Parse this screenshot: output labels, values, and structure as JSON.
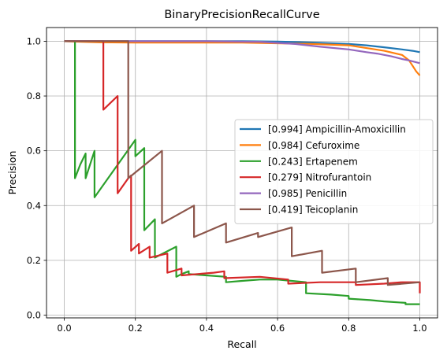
{
  "chart_data": {
    "type": "line",
    "title": "BinaryPrecisionRecallCurve",
    "xlabel": "Recall",
    "ylabel": "Precision",
    "xlim": [
      -0.05,
      1.05
    ],
    "ylim": [
      -0.01,
      1.05
    ],
    "xticks": [
      "0.0",
      "0.2",
      "0.4",
      "0.6",
      "0.8",
      "1.0"
    ],
    "yticks": [
      "0.0",
      "0.2",
      "0.4",
      "0.6",
      "0.8",
      "1.0"
    ],
    "grid": true,
    "legend_position": "center-right",
    "series": [
      {
        "name": "[0.994] Ampicillin-Amoxicillin",
        "color": "#1f77b4",
        "points": [
          [
            0,
            1
          ],
          [
            0.3,
            1
          ],
          [
            0.5,
            1
          ],
          [
            0.6,
            0.999
          ],
          [
            0.7,
            0.995
          ],
          [
            0.8,
            0.99
          ],
          [
            0.85,
            0.985
          ],
          [
            0.9,
            0.978
          ],
          [
            0.95,
            0.97
          ],
          [
            0.98,
            0.965
          ],
          [
            1,
            0.96
          ]
        ]
      },
      {
        "name": "[0.984] Cefuroxime",
        "color": "#ff7f0e",
        "points": [
          [
            0,
            1
          ],
          [
            0.05,
            0.998
          ],
          [
            0.1,
            0.996
          ],
          [
            0.2,
            0.995
          ],
          [
            0.5,
            0.995
          ],
          [
            0.7,
            0.99
          ],
          [
            0.8,
            0.985
          ],
          [
            0.85,
            0.975
          ],
          [
            0.9,
            0.965
          ],
          [
            0.95,
            0.95
          ],
          [
            0.97,
            0.93
          ],
          [
            0.98,
            0.91
          ],
          [
            0.99,
            0.89
          ],
          [
            1,
            0.875
          ]
        ]
      },
      {
        "name": "[0.243] Ertapenem",
        "color": "#2ca02c",
        "points": [
          [
            0,
            1
          ],
          [
            0.03,
            1
          ],
          [
            0.03,
            0.5
          ],
          [
            0.045,
            0.55
          ],
          [
            0.06,
            0.59
          ],
          [
            0.06,
            0.5
          ],
          [
            0.085,
            0.6
          ],
          [
            0.085,
            0.43
          ],
          [
            0.2,
            0.64
          ],
          [
            0.2,
            0.58
          ],
          [
            0.225,
            0.61
          ],
          [
            0.225,
            0.31
          ],
          [
            0.255,
            0.35
          ],
          [
            0.255,
            0.21
          ],
          [
            0.315,
            0.25
          ],
          [
            0.315,
            0.14
          ],
          [
            0.33,
            0.15
          ],
          [
            0.35,
            0.16
          ],
          [
            0.35,
            0.15
          ],
          [
            0.4,
            0.145
          ],
          [
            0.455,
            0.14
          ],
          [
            0.455,
            0.12
          ],
          [
            0.5,
            0.125
          ],
          [
            0.55,
            0.13
          ],
          [
            0.6,
            0.13
          ],
          [
            0.64,
            0.125
          ],
          [
            0.68,
            0.12
          ],
          [
            0.68,
            0.08
          ],
          [
            0.75,
            0.075
          ],
          [
            0.8,
            0.07
          ],
          [
            0.8,
            0.06
          ],
          [
            0.86,
            0.055
          ],
          [
            0.9,
            0.05
          ],
          [
            0.96,
            0.045
          ],
          [
            0.96,
            0.04
          ],
          [
            1,
            0.04
          ]
        ]
      },
      {
        "name": "[0.279] Nitrofurantoin",
        "color": "#d62728",
        "points": [
          [
            0,
            1
          ],
          [
            0.11,
            1
          ],
          [
            0.11,
            0.75
          ],
          [
            0.15,
            0.8
          ],
          [
            0.15,
            0.445
          ],
          [
            0.18,
            0.5
          ],
          [
            0.188,
            0.51
          ],
          [
            0.188,
            0.235
          ],
          [
            0.21,
            0.26
          ],
          [
            0.21,
            0.225
          ],
          [
            0.24,
            0.25
          ],
          [
            0.24,
            0.21
          ],
          [
            0.29,
            0.225
          ],
          [
            0.29,
            0.155
          ],
          [
            0.33,
            0.17
          ],
          [
            0.33,
            0.145
          ],
          [
            0.42,
            0.155
          ],
          [
            0.45,
            0.16
          ],
          [
            0.45,
            0.135
          ],
          [
            0.55,
            0.14
          ],
          [
            0.63,
            0.13
          ],
          [
            0.63,
            0.115
          ],
          [
            0.72,
            0.12
          ],
          [
            0.82,
            0.12
          ],
          [
            0.82,
            0.11
          ],
          [
            0.9,
            0.115
          ],
          [
            0.95,
            0.12
          ],
          [
            1,
            0.12
          ],
          [
            1,
            0.08
          ]
        ]
      },
      {
        "name": "[0.985] Penicillin",
        "color": "#9467bd",
        "points": [
          [
            0,
            1
          ],
          [
            0.4,
            1
          ],
          [
            0.55,
            0.998
          ],
          [
            0.65,
            0.99
          ],
          [
            0.72,
            0.98
          ],
          [
            0.8,
            0.97
          ],
          [
            0.85,
            0.96
          ],
          [
            0.88,
            0.955
          ],
          [
            0.92,
            0.945
          ],
          [
            0.95,
            0.935
          ],
          [
            0.97,
            0.93
          ],
          [
            1,
            0.92
          ]
        ]
      },
      {
        "name": "[0.419] Teicoplanin",
        "color": "#8c564b",
        "points": [
          [
            0,
            1
          ],
          [
            0.18,
            1
          ],
          [
            0.18,
            0.5
          ],
          [
            0.275,
            0.6
          ],
          [
            0.275,
            0.335
          ],
          [
            0.365,
            0.4
          ],
          [
            0.365,
            0.285
          ],
          [
            0.455,
            0.335
          ],
          [
            0.455,
            0.265
          ],
          [
            0.545,
            0.3
          ],
          [
            0.545,
            0.285
          ],
          [
            0.64,
            0.32
          ],
          [
            0.64,
            0.215
          ],
          [
            0.725,
            0.235
          ],
          [
            0.725,
            0.155
          ],
          [
            0.82,
            0.17
          ],
          [
            0.82,
            0.12
          ],
          [
            0.91,
            0.135
          ],
          [
            0.91,
            0.11
          ],
          [
            1,
            0.12
          ]
        ]
      }
    ]
  }
}
